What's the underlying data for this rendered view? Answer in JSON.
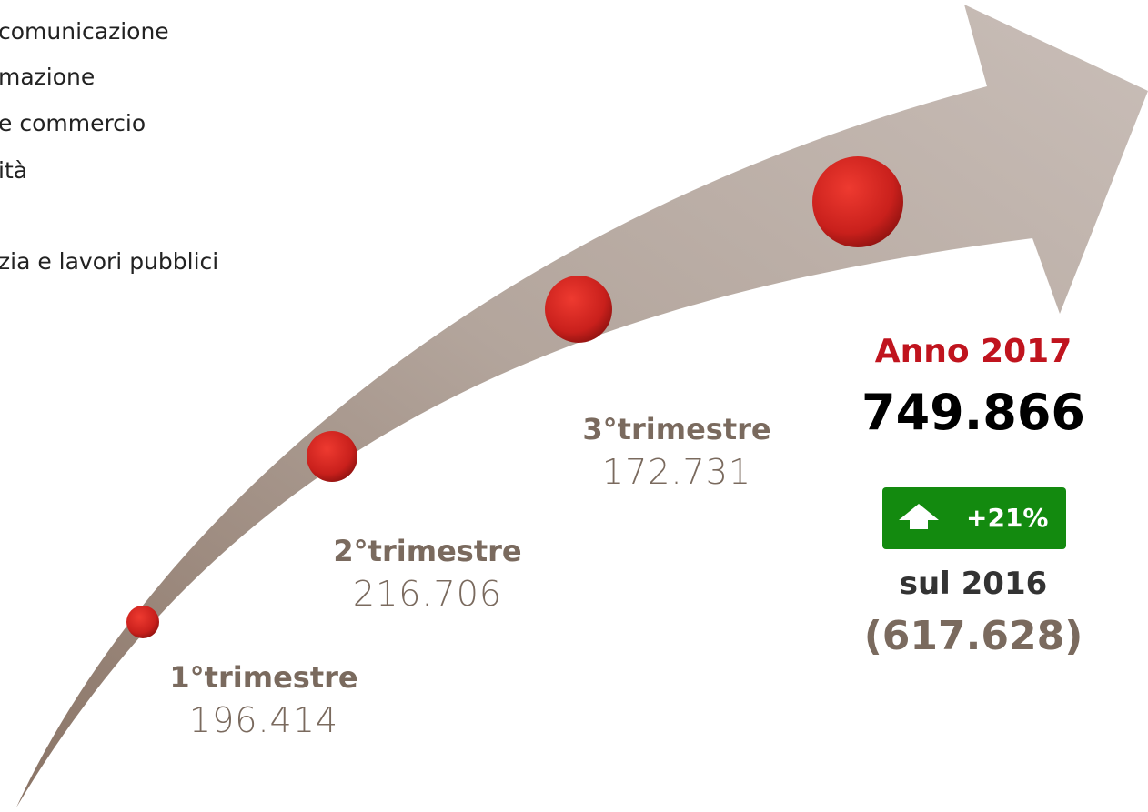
{
  "list": [
    "comunicazione",
    "mazione",
    "e commercio",
    "ità",
    "zia e lavori pubblici"
  ],
  "milestones": [
    {
      "label": "1°trimestre",
      "value": "196.414"
    },
    {
      "label": "2°trimestre",
      "value": "216.706"
    },
    {
      "label": "3°trimestre",
      "value": "172.731"
    }
  ],
  "summary": {
    "title": "Anno 2017",
    "total": "749.866",
    "change": "+21%",
    "comparison": "sul 2016",
    "previous": "(617.628)"
  }
}
